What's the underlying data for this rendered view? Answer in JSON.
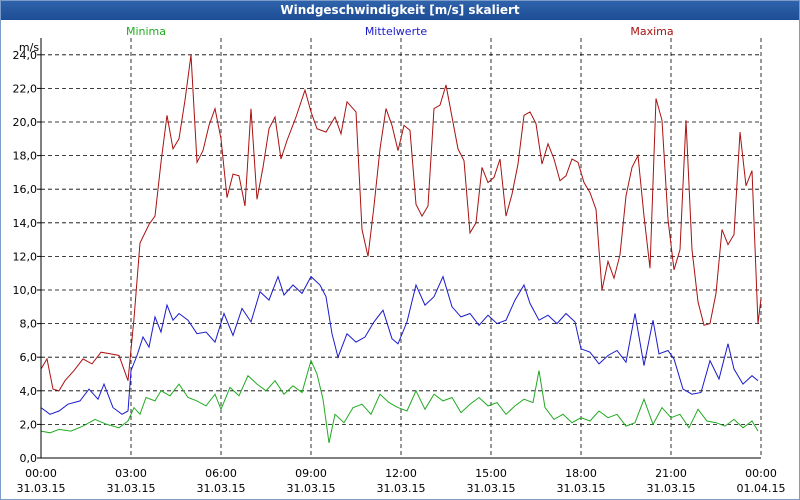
{
  "window": {
    "title": "Windgeschwindigkeit [m/s] skaliert"
  },
  "chart_data": {
    "type": "line",
    "title": "Windgeschwindigkeit [m/s] skaliert",
    "ylabel": "m/s",
    "xlabel": "",
    "ylim": [
      0,
      25
    ],
    "yticks": [
      0,
      2,
      4,
      6,
      8,
      10,
      12,
      14,
      16,
      18,
      20,
      22,
      24
    ],
    "ytick_labels": [
      "0,0",
      "2,0",
      "4,0",
      "6,0",
      "8,0",
      "10,0",
      "12,0",
      "14,0",
      "16,0",
      "18,0",
      "20,0",
      "22,0",
      "24,0"
    ],
    "xlim_hours": [
      0,
      24
    ],
    "xticks": [
      {
        "hour": 0,
        "time": "00:00",
        "date": "31.03.15"
      },
      {
        "hour": 3,
        "time": "03:00",
        "date": "31.03.15"
      },
      {
        "hour": 6,
        "time": "06:00",
        "date": "31.03.15"
      },
      {
        "hour": 9,
        "time": "09:00",
        "date": "31.03.15"
      },
      {
        "hour": 12,
        "time": "12:00",
        "date": "31.03.15"
      },
      {
        "hour": 15,
        "time": "15:00",
        "date": "31.03.15"
      },
      {
        "hour": 18,
        "time": "18:00",
        "date": "31.03.15"
      },
      {
        "hour": 21,
        "time": "21:00",
        "date": "31.03.15"
      },
      {
        "hour": 24,
        "time": "00:00",
        "date": "01.04.15"
      }
    ],
    "series": [
      {
        "name": "Minima",
        "color": "#22aa22",
        "legend_pos": "left",
        "points": [
          [
            0.0,
            1.6
          ],
          [
            0.3,
            1.5
          ],
          [
            0.6,
            1.7
          ],
          [
            1.0,
            1.6
          ],
          [
            1.4,
            1.9
          ],
          [
            1.8,
            2.3
          ],
          [
            2.2,
            2.0
          ],
          [
            2.6,
            1.8
          ],
          [
            2.9,
            2.2
          ],
          [
            3.1,
            3.0
          ],
          [
            3.3,
            2.6
          ],
          [
            3.5,
            3.6
          ],
          [
            3.8,
            3.4
          ],
          [
            4.0,
            4.0
          ],
          [
            4.3,
            3.7
          ],
          [
            4.6,
            4.4
          ],
          [
            4.9,
            3.6
          ],
          [
            5.2,
            3.4
          ],
          [
            5.5,
            3.1
          ],
          [
            5.8,
            3.8
          ],
          [
            6.0,
            2.9
          ],
          [
            6.3,
            4.2
          ],
          [
            6.6,
            3.7
          ],
          [
            6.9,
            4.9
          ],
          [
            7.2,
            4.4
          ],
          [
            7.5,
            4.0
          ],
          [
            7.8,
            4.6
          ],
          [
            8.1,
            3.8
          ],
          [
            8.4,
            4.3
          ],
          [
            8.7,
            3.9
          ],
          [
            9.0,
            5.8
          ],
          [
            9.2,
            5.0
          ],
          [
            9.4,
            3.5
          ],
          [
            9.6,
            0.9
          ],
          [
            9.8,
            2.6
          ],
          [
            10.1,
            2.1
          ],
          [
            10.4,
            3.0
          ],
          [
            10.7,
            3.2
          ],
          [
            11.0,
            2.6
          ],
          [
            11.3,
            3.8
          ],
          [
            11.6,
            3.3
          ],
          [
            11.9,
            3.0
          ],
          [
            12.2,
            2.8
          ],
          [
            12.5,
            4.0
          ],
          [
            12.8,
            2.9
          ],
          [
            13.1,
            3.8
          ],
          [
            13.4,
            3.4
          ],
          [
            13.7,
            3.6
          ],
          [
            14.0,
            2.7
          ],
          [
            14.3,
            3.2
          ],
          [
            14.6,
            3.6
          ],
          [
            14.9,
            3.1
          ],
          [
            15.2,
            3.3
          ],
          [
            15.5,
            2.6
          ],
          [
            15.8,
            3.1
          ],
          [
            16.1,
            3.5
          ],
          [
            16.4,
            3.3
          ],
          [
            16.6,
            5.2
          ],
          [
            16.8,
            3.0
          ],
          [
            17.1,
            2.3
          ],
          [
            17.4,
            2.6
          ],
          [
            17.7,
            2.1
          ],
          [
            18.0,
            2.4
          ],
          [
            18.3,
            2.2
          ],
          [
            18.6,
            2.8
          ],
          [
            18.9,
            2.4
          ],
          [
            19.2,
            2.6
          ],
          [
            19.5,
            1.9
          ],
          [
            19.8,
            2.1
          ],
          [
            20.1,
            3.5
          ],
          [
            20.4,
            2.0
          ],
          [
            20.7,
            3.0
          ],
          [
            21.0,
            2.4
          ],
          [
            21.3,
            2.6
          ],
          [
            21.6,
            1.8
          ],
          [
            21.9,
            2.9
          ],
          [
            22.2,
            2.2
          ],
          [
            22.5,
            2.1
          ],
          [
            22.8,
            1.9
          ],
          [
            23.1,
            2.3
          ],
          [
            23.4,
            1.8
          ],
          [
            23.7,
            2.2
          ],
          [
            23.9,
            1.6
          ]
        ]
      },
      {
        "name": "Mittelwerte",
        "color": "#1a1acc",
        "legend_pos": "center",
        "points": [
          [
            0.0,
            3.0
          ],
          [
            0.3,
            2.6
          ],
          [
            0.6,
            2.8
          ],
          [
            0.9,
            3.2
          ],
          [
            1.3,
            3.4
          ],
          [
            1.6,
            4.1
          ],
          [
            1.9,
            3.5
          ],
          [
            2.1,
            4.4
          ],
          [
            2.4,
            3.0
          ],
          [
            2.7,
            2.6
          ],
          [
            2.9,
            2.8
          ],
          [
            3.0,
            5.2
          ],
          [
            3.2,
            6.1
          ],
          [
            3.4,
            7.2
          ],
          [
            3.6,
            6.6
          ],
          [
            3.8,
            8.4
          ],
          [
            4.0,
            7.5
          ],
          [
            4.2,
            9.1
          ],
          [
            4.4,
            8.2
          ],
          [
            4.6,
            8.6
          ],
          [
            4.9,
            8.2
          ],
          [
            5.2,
            7.4
          ],
          [
            5.5,
            7.5
          ],
          [
            5.8,
            6.9
          ],
          [
            6.1,
            8.6
          ],
          [
            6.4,
            7.3
          ],
          [
            6.7,
            8.9
          ],
          [
            7.0,
            8.1
          ],
          [
            7.3,
            9.9
          ],
          [
            7.6,
            9.4
          ],
          [
            7.9,
            10.8
          ],
          [
            8.1,
            9.7
          ],
          [
            8.4,
            10.3
          ],
          [
            8.7,
            9.8
          ],
          [
            9.0,
            10.8
          ],
          [
            9.3,
            10.3
          ],
          [
            9.5,
            9.6
          ],
          [
            9.7,
            7.4
          ],
          [
            9.9,
            6.0
          ],
          [
            10.2,
            7.4
          ],
          [
            10.5,
            6.9
          ],
          [
            10.8,
            7.2
          ],
          [
            11.1,
            8.1
          ],
          [
            11.4,
            8.8
          ],
          [
            11.7,
            7.1
          ],
          [
            11.9,
            6.8
          ],
          [
            12.2,
            8.1
          ],
          [
            12.5,
            10.3
          ],
          [
            12.8,
            9.1
          ],
          [
            13.1,
            9.6
          ],
          [
            13.4,
            10.8
          ],
          [
            13.7,
            9.0
          ],
          [
            14.0,
            8.4
          ],
          [
            14.3,
            8.6
          ],
          [
            14.6,
            7.9
          ],
          [
            14.9,
            8.5
          ],
          [
            15.2,
            8.0
          ],
          [
            15.5,
            8.2
          ],
          [
            15.8,
            9.4
          ],
          [
            16.1,
            10.3
          ],
          [
            16.3,
            9.2
          ],
          [
            16.6,
            8.2
          ],
          [
            16.9,
            8.5
          ],
          [
            17.2,
            8.0
          ],
          [
            17.5,
            8.6
          ],
          [
            17.8,
            8.1
          ],
          [
            18.0,
            6.5
          ],
          [
            18.3,
            6.3
          ],
          [
            18.6,
            5.6
          ],
          [
            18.9,
            6.1
          ],
          [
            19.2,
            6.4
          ],
          [
            19.5,
            5.7
          ],
          [
            19.8,
            8.6
          ],
          [
            20.1,
            5.5
          ],
          [
            20.4,
            8.2
          ],
          [
            20.6,
            6.2
          ],
          [
            20.9,
            6.4
          ],
          [
            21.1,
            5.9
          ],
          [
            21.4,
            4.1
          ],
          [
            21.7,
            3.8
          ],
          [
            22.0,
            3.9
          ],
          [
            22.3,
            5.8
          ],
          [
            22.6,
            4.7
          ],
          [
            22.9,
            6.8
          ],
          [
            23.1,
            5.3
          ],
          [
            23.4,
            4.4
          ],
          [
            23.7,
            4.9
          ],
          [
            23.9,
            4.6
          ]
        ]
      },
      {
        "name": "Maxima",
        "color": "#aa1111",
        "legend_pos": "right",
        "points": [
          [
            0.0,
            5.3
          ],
          [
            0.2,
            5.9
          ],
          [
            0.4,
            4.1
          ],
          [
            0.6,
            4.0
          ],
          [
            0.8,
            4.6
          ],
          [
            1.1,
            5.2
          ],
          [
            1.4,
            5.9
          ],
          [
            1.7,
            5.6
          ],
          [
            2.0,
            6.3
          ],
          [
            2.3,
            6.2
          ],
          [
            2.6,
            6.1
          ],
          [
            2.9,
            4.6
          ],
          [
            3.1,
            8.3
          ],
          [
            3.3,
            12.8
          ],
          [
            3.6,
            13.9
          ],
          [
            3.8,
            14.4
          ],
          [
            4.0,
            17.6
          ],
          [
            4.2,
            20.4
          ],
          [
            4.4,
            18.4
          ],
          [
            4.6,
            19.0
          ],
          [
            4.8,
            21.3
          ],
          [
            5.0,
            24.0
          ],
          [
            5.2,
            17.6
          ],
          [
            5.4,
            18.3
          ],
          [
            5.6,
            19.8
          ],
          [
            5.8,
            20.8
          ],
          [
            6.0,
            19.0
          ],
          [
            6.2,
            15.5
          ],
          [
            6.4,
            16.9
          ],
          [
            6.6,
            16.8
          ],
          [
            6.8,
            15.0
          ],
          [
            7.0,
            20.8
          ],
          [
            7.2,
            15.4
          ],
          [
            7.4,
            17.3
          ],
          [
            7.6,
            19.6
          ],
          [
            7.8,
            20.3
          ],
          [
            8.0,
            17.8
          ],
          [
            8.2,
            18.9
          ],
          [
            8.5,
            20.3
          ],
          [
            8.8,
            21.9
          ],
          [
            9.0,
            20.6
          ],
          [
            9.2,
            19.6
          ],
          [
            9.5,
            19.4
          ],
          [
            9.8,
            20.3
          ],
          [
            10.0,
            19.3
          ],
          [
            10.2,
            21.2
          ],
          [
            10.5,
            20.6
          ],
          [
            10.7,
            13.6
          ],
          [
            10.9,
            12.0
          ],
          [
            11.1,
            15.0
          ],
          [
            11.3,
            18.4
          ],
          [
            11.5,
            20.8
          ],
          [
            11.7,
            19.8
          ],
          [
            11.9,
            18.3
          ],
          [
            12.1,
            19.8
          ],
          [
            12.3,
            19.5
          ],
          [
            12.5,
            15.1
          ],
          [
            12.7,
            14.4
          ],
          [
            12.9,
            15.0
          ],
          [
            13.1,
            20.8
          ],
          [
            13.3,
            21.0
          ],
          [
            13.5,
            22.2
          ],
          [
            13.7,
            20.3
          ],
          [
            13.9,
            18.4
          ],
          [
            14.1,
            17.7
          ],
          [
            14.3,
            13.4
          ],
          [
            14.5,
            14.0
          ],
          [
            14.7,
            17.3
          ],
          [
            14.9,
            16.4
          ],
          [
            15.1,
            16.7
          ],
          [
            15.3,
            17.8
          ],
          [
            15.5,
            14.4
          ],
          [
            15.7,
            15.7
          ],
          [
            15.9,
            17.5
          ],
          [
            16.1,
            20.4
          ],
          [
            16.3,
            20.6
          ],
          [
            16.5,
            19.9
          ],
          [
            16.7,
            17.5
          ],
          [
            16.9,
            18.7
          ],
          [
            17.1,
            17.8
          ],
          [
            17.3,
            16.5
          ],
          [
            17.5,
            16.8
          ],
          [
            17.7,
            17.8
          ],
          [
            17.9,
            17.6
          ],
          [
            18.1,
            16.4
          ],
          [
            18.3,
            15.8
          ],
          [
            18.5,
            14.8
          ],
          [
            18.7,
            10.0
          ],
          [
            18.9,
            11.7
          ],
          [
            19.1,
            10.7
          ],
          [
            19.3,
            12.1
          ],
          [
            19.5,
            15.6
          ],
          [
            19.7,
            17.3
          ],
          [
            19.9,
            18.0
          ],
          [
            20.1,
            14.4
          ],
          [
            20.3,
            11.3
          ],
          [
            20.5,
            21.4
          ],
          [
            20.7,
            20.1
          ],
          [
            20.9,
            14.2
          ],
          [
            21.1,
            11.2
          ],
          [
            21.3,
            12.4
          ],
          [
            21.5,
            20.1
          ],
          [
            21.7,
            12.4
          ],
          [
            21.9,
            9.3
          ],
          [
            22.1,
            7.9
          ],
          [
            22.3,
            8.0
          ],
          [
            22.5,
            9.8
          ],
          [
            22.7,
            13.6
          ],
          [
            22.9,
            12.7
          ],
          [
            23.1,
            13.3
          ],
          [
            23.3,
            19.4
          ],
          [
            23.5,
            16.2
          ],
          [
            23.7,
            17.1
          ],
          [
            23.9,
            8.0
          ],
          [
            24.0,
            9.5
          ]
        ]
      }
    ]
  }
}
